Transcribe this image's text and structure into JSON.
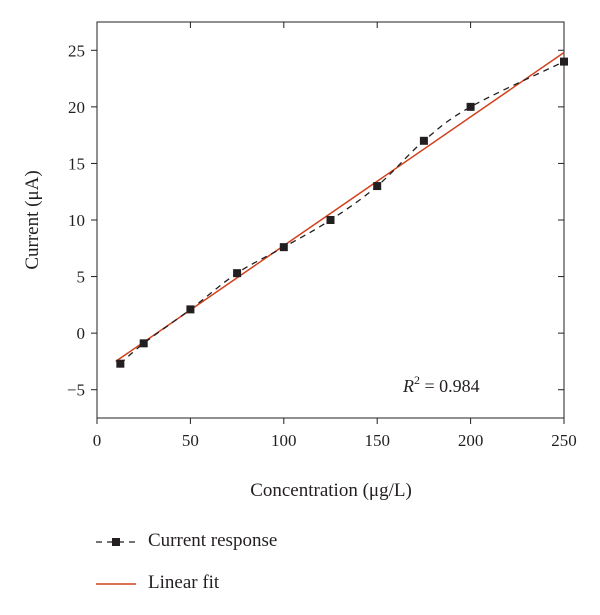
{
  "chart_data": {
    "type": "line",
    "title": "",
    "xlabel": "Concentration (μg/L)",
    "ylabel": "Current (μA)",
    "xlim": [
      0,
      250
    ],
    "ylim": [
      -7.5,
      27.5
    ],
    "xticks": [
      0,
      50,
      100,
      150,
      200,
      250
    ],
    "yticks": [
      -5,
      0,
      5,
      10,
      15,
      20,
      25
    ],
    "grid": false,
    "legend_position": "below plot",
    "series": [
      {
        "name": "Current response",
        "style": "dashed line with square markers",
        "color": "#231f20",
        "x": [
          12.5,
          25,
          50,
          75,
          100,
          125,
          150,
          175,
          200,
          250
        ],
        "y": [
          -2.7,
          -0.9,
          2.1,
          5.3,
          7.6,
          10.0,
          13.0,
          17.0,
          20.0,
          24.0
        ]
      },
      {
        "name": "Linear fit",
        "style": "solid line",
        "color": "#d2411c",
        "x": [
          10,
          250
        ],
        "y": [
          -2.5,
          24.8
        ]
      }
    ],
    "annotation": {
      "label": "R",
      "superscript": "2",
      "value": " = 0.984"
    }
  }
}
